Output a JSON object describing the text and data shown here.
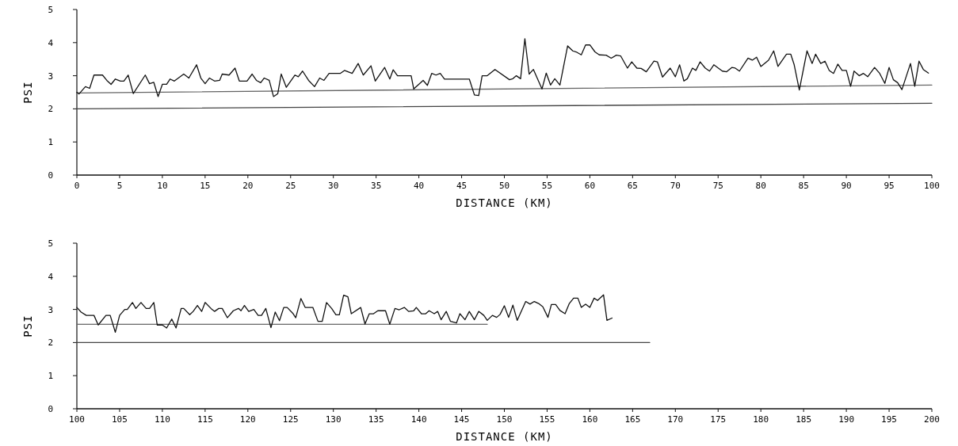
{
  "chart_data": [
    {
      "type": "line",
      "xlabel": "DISTANCE (KM)",
      "ylabel": "PSI",
      "xlim": [
        0,
        100
      ],
      "ylim": [
        0,
        5
      ],
      "xticks": [
        0,
        5,
        10,
        15,
        20,
        25,
        30,
        35,
        40,
        45,
        50,
        55,
        60,
        65,
        70,
        75,
        80,
        85,
        90,
        95,
        100
      ],
      "yticks": [
        0,
        1,
        2,
        3,
        4,
        5
      ],
      "series": [
        {
          "color": "#666666",
          "x": [
            0,
            100
          ],
          "values": [
            2.48,
            2.72
          ]
        },
        {
          "color": "#444444",
          "x": [
            0,
            100
          ],
          "values": [
            2.0,
            2.17
          ]
        },
        {
          "color": "#111111",
          "x": [
            0,
            0.25,
            1,
            1.5,
            2,
            3,
            3.5,
            4,
            4.5,
            5.1,
            5.5,
            6,
            6.6,
            8,
            8.5,
            9,
            9.5,
            10,
            10.5,
            10.9,
            11.4,
            12.5,
            13.1,
            14,
            14.5,
            15,
            15.5,
            16.1,
            16.7,
            17,
            17.8,
            18.5,
            19,
            19.9,
            20.5,
            21,
            21.5,
            21.9,
            22.5,
            23,
            23.5,
            23.9,
            24.5,
            25.5,
            25.9,
            26.4,
            27.1,
            27.8,
            28.4,
            28.9,
            29.5,
            30.8,
            31.3,
            32.2,
            32.9,
            33.5,
            34.4,
            34.9,
            36,
            36.6,
            37,
            37.5,
            39.1,
            39.4,
            40.5,
            41,
            41.5,
            42,
            42.5,
            43,
            45.9,
            46.5,
            47,
            47.4,
            48,
            48.9,
            50.6,
            51,
            51.4,
            51.9,
            52.4,
            52.9,
            53.4,
            54.4,
            54.9,
            55.4,
            55.9,
            56.5,
            57.4,
            58,
            58.4,
            59,
            59.5,
            60,
            60.6,
            61.1,
            61.9,
            62.5,
            63.1,
            63.6,
            64.4,
            64.9,
            65.5,
            66,
            66.6,
            67.5,
            67.9,
            68.5,
            69.4,
            70,
            70.5,
            71,
            71.4,
            72,
            72.4,
            72.9,
            73.5,
            74,
            74.5,
            75.5,
            76,
            76.6,
            77,
            77.5,
            78.5,
            79,
            79.5,
            80,
            80.9,
            81.5,
            82,
            83,
            83.5,
            83.9,
            84.5,
            85.4,
            86,
            86.4,
            87,
            87.5,
            88,
            88.5,
            89,
            89.5,
            90,
            90.5,
            90.9,
            91.5,
            92,
            92.5,
            93.3,
            93.9,
            94.5,
            95,
            95.5,
            96,
            96.5,
            97.5,
            98,
            98.5,
            99,
            99.6
          ],
          "values": [
            2.5,
            2.45,
            2.67,
            2.62,
            3.02,
            3.02,
            2.86,
            2.74,
            2.9,
            2.84,
            2.84,
            3.02,
            2.46,
            3.02,
            2.76,
            2.8,
            2.37,
            2.74,
            2.74,
            2.9,
            2.84,
            3.05,
            2.93,
            3.33,
            2.93,
            2.76,
            2.93,
            2.84,
            2.86,
            3.05,
            3.02,
            3.23,
            2.84,
            2.84,
            3.05,
            2.86,
            2.79,
            2.93,
            2.86,
            2.37,
            2.46,
            3.05,
            2.65,
            3.02,
            2.97,
            3.14,
            2.86,
            2.67,
            2.93,
            2.86,
            3.07,
            3.07,
            3.16,
            3.07,
            3.37,
            3.02,
            3.3,
            2.84,
            3.25,
            2.9,
            3.18,
            3.0,
            3.0,
            2.6,
            2.86,
            2.71,
            3.07,
            3.02,
            3.07,
            2.9,
            2.9,
            2.42,
            2.4,
            3.0,
            3.0,
            3.19,
            2.88,
            2.91,
            3.0,
            2.91,
            4.12,
            3.05,
            3.19,
            2.6,
            3.08,
            2.72,
            2.91,
            2.72,
            3.9,
            3.75,
            3.72,
            3.63,
            3.93,
            3.93,
            3.72,
            3.63,
            3.62,
            3.53,
            3.62,
            3.6,
            3.23,
            3.42,
            3.23,
            3.22,
            3.12,
            3.44,
            3.42,
            2.96,
            3.23,
            2.97,
            3.33,
            2.84,
            2.91,
            3.23,
            3.16,
            3.42,
            3.23,
            3.14,
            3.33,
            3.14,
            3.12,
            3.25,
            3.23,
            3.14,
            3.53,
            3.47,
            3.56,
            3.28,
            3.47,
            3.75,
            3.28,
            3.65,
            3.65,
            3.33,
            2.57,
            3.75,
            3.37,
            3.65,
            3.37,
            3.44,
            3.16,
            3.07,
            3.35,
            3.16,
            3.16,
            2.68,
            3.14,
            3.0,
            3.07,
            2.97,
            3.25,
            3.07,
            2.77,
            3.25,
            2.88,
            2.79,
            2.58,
            3.37,
            2.68,
            3.44,
            3.19,
            3.08
          ]
        }
      ]
    },
    {
      "type": "line",
      "xlabel": "DISTANCE (KM)",
      "ylabel": "PSI",
      "xlim": [
        100,
        200
      ],
      "ylim": [
        0,
        5
      ],
      "xticks": [
        100,
        105,
        110,
        115,
        120,
        125,
        130,
        135,
        140,
        145,
        150,
        155,
        160,
        165,
        170,
        175,
        180,
        185,
        190,
        195,
        200
      ],
      "yticks": [
        0,
        1,
        2,
        3,
        4,
        5
      ],
      "series": [
        {
          "color": "#666666",
          "x": [
            100,
            148
          ],
          "values": [
            2.55,
            2.55
          ]
        },
        {
          "color": "#444444",
          "x": [
            100,
            167
          ],
          "values": [
            2.0,
            2.0
          ]
        },
        {
          "color": "#111111",
          "x": [
            100,
            100.5,
            101.1,
            102,
            102.5,
            103.4,
            103.9,
            104.5,
            105,
            105.6,
            105.9,
            106.5,
            106.9,
            107.5,
            108.1,
            108.5,
            109,
            109.4,
            110,
            110.5,
            111.1,
            111.6,
            112.2,
            112.5,
            113.2,
            113.6,
            114.1,
            114.6,
            115,
            115.8,
            116.1,
            116.6,
            117,
            117.6,
            118.3,
            118.9,
            119.2,
            119.6,
            120.1,
            120.7,
            121.2,
            121.6,
            122.1,
            122.7,
            123.2,
            123.7,
            124.2,
            124.6,
            125.3,
            125.6,
            126.2,
            126.7,
            127.6,
            128.2,
            128.7,
            129.2,
            129.8,
            130.3,
            130.7,
            131.2,
            131.7,
            132.1,
            133.2,
            133.7,
            134.2,
            134.7,
            135.2,
            136.1,
            136.6,
            137.2,
            137.7,
            138.3,
            138.8,
            139.4,
            139.7,
            140.3,
            140.8,
            141.2,
            141.8,
            142.2,
            142.6,
            143.2,
            143.7,
            144.4,
            144.8,
            145.4,
            145.9,
            146.5,
            147,
            147.6,
            148,
            148.6,
            149.1,
            149.5,
            150,
            150.5,
            151,
            151.5,
            152.5,
            153,
            153.5,
            154,
            154.5,
            155.1,
            155.5,
            156,
            156.5,
            157.1,
            157.6,
            158.1,
            158.6,
            159,
            159.5,
            160,
            160.5,
            160.9,
            161.6,
            162,
            162.6
          ],
          "values": [
            3.06,
            2.92,
            2.82,
            2.82,
            2.53,
            2.82,
            2.82,
            2.31,
            2.82,
            3.0,
            3.0,
            3.21,
            3.03,
            3.21,
            3.03,
            3.03,
            3.21,
            2.53,
            2.53,
            2.44,
            2.71,
            2.44,
            3.03,
            3.03,
            2.84,
            2.94,
            3.12,
            2.94,
            3.21,
            3.0,
            2.94,
            3.03,
            3.03,
            2.75,
            2.96,
            3.03,
            2.96,
            3.12,
            2.94,
            3.0,
            2.82,
            2.82,
            3.03,
            2.45,
            2.92,
            2.66,
            3.06,
            3.06,
            2.87,
            2.75,
            3.33,
            3.06,
            3.06,
            2.64,
            2.64,
            3.21,
            3.03,
            2.84,
            2.84,
            3.43,
            3.38,
            2.87,
            3.06,
            2.56,
            2.87,
            2.87,
            2.96,
            2.96,
            2.55,
            3.03,
            2.99,
            3.06,
            2.94,
            2.96,
            3.06,
            2.87,
            2.87,
            2.96,
            2.87,
            2.94,
            2.69,
            2.94,
            2.64,
            2.59,
            2.87,
            2.69,
            2.94,
            2.69,
            2.94,
            2.82,
            2.67,
            2.82,
            2.76,
            2.85,
            3.11,
            2.76,
            3.13,
            2.67,
            3.24,
            3.16,
            3.24,
            3.18,
            3.08,
            2.76,
            3.15,
            3.15,
            2.97,
            2.87,
            3.18,
            3.34,
            3.34,
            3.06,
            3.16,
            3.06,
            3.34,
            3.27,
            3.44,
            2.67,
            2.74
          ]
        }
      ]
    }
  ]
}
